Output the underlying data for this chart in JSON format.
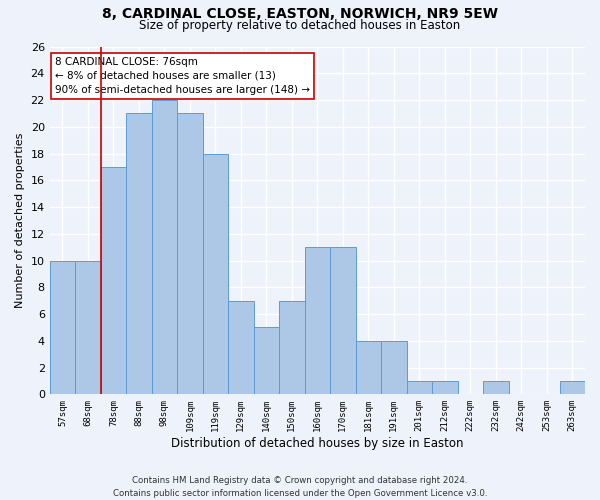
{
  "title1": "8, CARDINAL CLOSE, EASTON, NORWICH, NR9 5EW",
  "title2": "Size of property relative to detached houses in Easton",
  "xlabel": "Distribution of detached houses by size in Easton",
  "ylabel": "Number of detached properties",
  "categories": [
    "57sqm",
    "68sqm",
    "78sqm",
    "88sqm",
    "98sqm",
    "109sqm",
    "119sqm",
    "129sqm",
    "140sqm",
    "150sqm",
    "160sqm",
    "170sqm",
    "181sqm",
    "191sqm",
    "201sqm",
    "212sqm",
    "222sqm",
    "232sqm",
    "242sqm",
    "253sqm",
    "263sqm"
  ],
  "values": [
    10,
    10,
    17,
    21,
    22,
    21,
    18,
    7,
    5,
    7,
    11,
    11,
    4,
    4,
    1,
    1,
    0,
    1,
    0,
    0,
    1
  ],
  "bar_color": "#adc8e6",
  "bar_edge_color": "#5b9bd5",
  "subject_line_color": "#cc0000",
  "annotation_box_text": "8 CARDINAL CLOSE: 76sqm\n← 8% of detached houses are smaller (13)\n90% of semi-detached houses are larger (148) →",
  "ylim": [
    0,
    26
  ],
  "yticks": [
    0,
    2,
    4,
    6,
    8,
    10,
    12,
    14,
    16,
    18,
    20,
    22,
    24,
    26
  ],
  "background_color": "#eef2fa",
  "grid_color": "#ffffff",
  "footer1": "Contains HM Land Registry data © Crown copyright and database right 2024.",
  "footer2": "Contains public sector information licensed under the Open Government Licence v3.0."
}
